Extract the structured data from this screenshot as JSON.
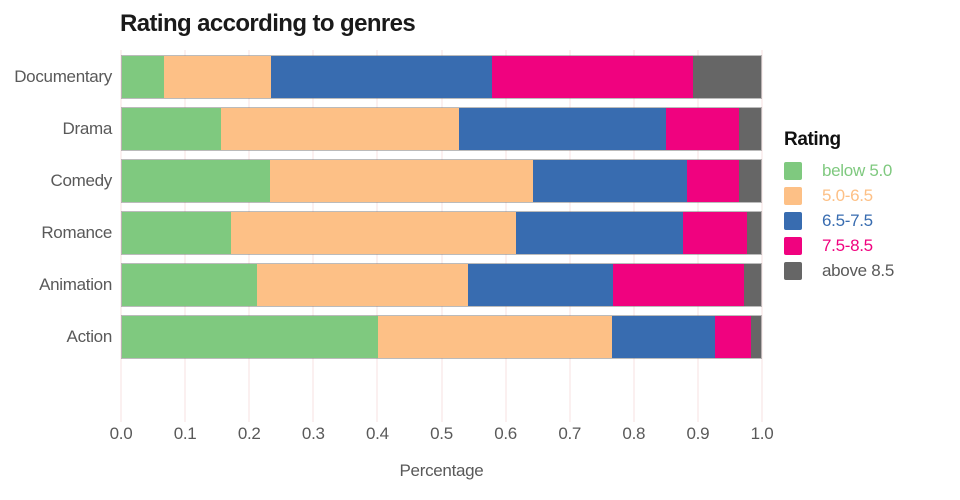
{
  "chart_data": {
    "type": "bar",
    "orientation": "horizontal-stacked",
    "title": "Rating according to genres",
    "xlabel": "Percentage",
    "legend_title": "Rating",
    "legend_position": "right",
    "grid": "vertical-light",
    "xlim": [
      0.0,
      1.0
    ],
    "x_ticks": [
      "0.0",
      "0.1",
      "0.2",
      "0.3",
      "0.4",
      "0.5",
      "0.6",
      "0.7",
      "0.8",
      "0.9",
      "1.0"
    ],
    "categories": [
      "Documentary",
      "Drama",
      "Comedy",
      "Romance",
      "Animation",
      "Action"
    ],
    "series": [
      {
        "name": "below 5.0",
        "color": "#7fc97f",
        "label_color": "#7fc97f",
        "values": [
          0.065,
          0.155,
          0.231,
          0.17,
          0.212,
          0.4
        ]
      },
      {
        "name": "5.0-6.5",
        "color": "#fdc086",
        "label_color": "#fdc086",
        "values": [
          0.168,
          0.372,
          0.412,
          0.447,
          0.33,
          0.367
        ]
      },
      {
        "name": "6.5-7.5",
        "color": "#386cb0",
        "label_color": "#386cb0",
        "values": [
          0.346,
          0.324,
          0.242,
          0.261,
          0.226,
          0.161
        ]
      },
      {
        "name": "7.5-8.5",
        "color": "#f0027f",
        "label_color": "#f0027f",
        "values": [
          0.315,
          0.115,
          0.081,
          0.1,
          0.206,
          0.056
        ]
      },
      {
        "name": "above 8.5",
        "color": "#666666",
        "label_color": "#595959",
        "values": [
          0.106,
          0.034,
          0.034,
          0.022,
          0.026,
          0.016
        ]
      }
    ],
    "colors": {
      "gridline": "#f7e2e2",
      "axis_text": "#595959",
      "title_text": "#1a1a1a"
    }
  }
}
